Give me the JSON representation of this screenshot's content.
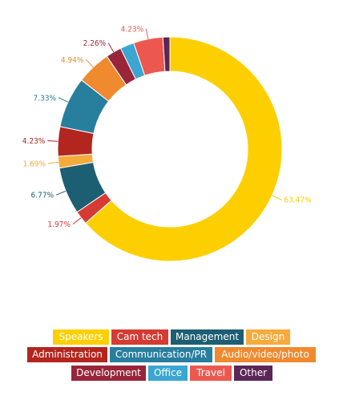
{
  "chart_data": {
    "type": "pie",
    "donut": true,
    "slices": [
      {
        "name": "Speakers",
        "value": 63.47,
        "label": "63.47%",
        "color": "#FDCF00"
      },
      {
        "name": "Cam tech",
        "value": 1.97,
        "label": "1.97%",
        "color": "#D53B33"
      },
      {
        "name": "Management",
        "value": 6.77,
        "label": "6.77%",
        "color": "#1D5F72"
      },
      {
        "name": "Design",
        "value": 1.69,
        "label": "1.69%",
        "color": "#F7AA3C"
      },
      {
        "name": "Administration",
        "value": 4.23,
        "label": "4.23%",
        "color": "#B2261F"
      },
      {
        "name": "Communication/PR",
        "value": 7.33,
        "label": "7.33%",
        "color": "#287E9D"
      },
      {
        "name": "Audio/video/photo",
        "value": 4.94,
        "label": "4.94%",
        "color": "#F08A2E"
      },
      {
        "name": "Development",
        "value": 2.26,
        "label": "2.26%",
        "color": "#99253A"
      },
      {
        "name": "Office",
        "value": 2.0,
        "label": "",
        "color": "#3BA6D1"
      },
      {
        "name": "Travel",
        "value": 4.23,
        "label": "4.23%",
        "color": "#EC584F"
      },
      {
        "name": "Other",
        "value": 1.0,
        "label": "",
        "color": "#5C2657"
      }
    ],
    "legend_placement": "bottom"
  },
  "legend": {
    "rows": [
      [
        {
          "label": "Speakers",
          "color": "#FDCF00"
        },
        {
          "label": "Cam tech",
          "color": "#D53B33"
        },
        {
          "label": "Management",
          "color": "#1D5F72"
        },
        {
          "label": "Design",
          "color": "#F7AA3C"
        }
      ],
      [
        {
          "label": "Administration",
          "color": "#B2261F"
        },
        {
          "label": "Communication/PR",
          "color": "#287E9D"
        },
        {
          "label": "Audio/video/photo",
          "color": "#F08A2E"
        }
      ],
      [
        {
          "label": "Development",
          "color": "#99253A"
        },
        {
          "label": "Office",
          "color": "#3BA6D1"
        },
        {
          "label": "Travel",
          "color": "#EC584F"
        },
        {
          "label": "Other",
          "color": "#5C2657"
        }
      ]
    ]
  }
}
